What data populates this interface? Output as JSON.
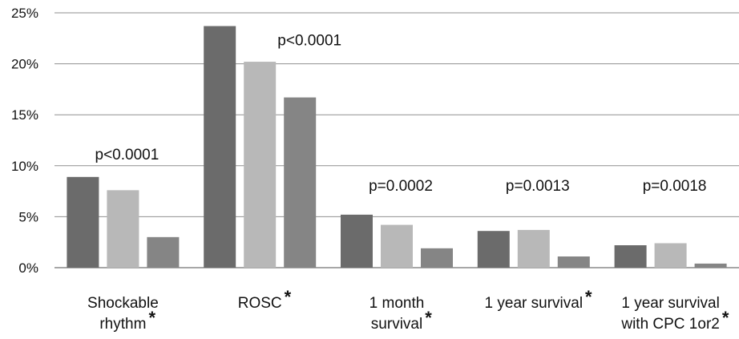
{
  "chart_data": {
    "type": "bar",
    "title": "",
    "xlabel": "",
    "ylabel": "",
    "ylim": [
      0,
      25
    ],
    "yticks": [
      "0%",
      "5%",
      "10%",
      "15%",
      "20%",
      "25%"
    ],
    "grid": true,
    "legend": "none",
    "categories": [
      {
        "lines": [
          "Shockable",
          "rhythm"
        ],
        "star": "*"
      },
      {
        "lines": [
          "ROSC"
        ],
        "star": "*"
      },
      {
        "lines": [
          "1 month",
          "survival"
        ],
        "star": "*"
      },
      {
        "lines": [
          "1 year survival"
        ],
        "star": "*"
      },
      {
        "lines": [
          "1 year survival",
          "with CPC 1or2"
        ],
        "star": "*"
      }
    ],
    "p_values": [
      "p<0.0001",
      "p<0.0001",
      "p=0.0002",
      "p=0.0013",
      "p=0.0018"
    ],
    "series": [
      {
        "color": "#6b6b6b",
        "values": [
          8.9,
          23.7,
          5.2,
          3.6,
          2.2
        ]
      },
      {
        "color": "#b8b8b8",
        "values": [
          7.6,
          20.2,
          4.2,
          3.7,
          2.4
        ]
      },
      {
        "color": "#858585",
        "values": [
          3.0,
          16.7,
          1.9,
          1.1,
          0.4
        ]
      }
    ]
  }
}
